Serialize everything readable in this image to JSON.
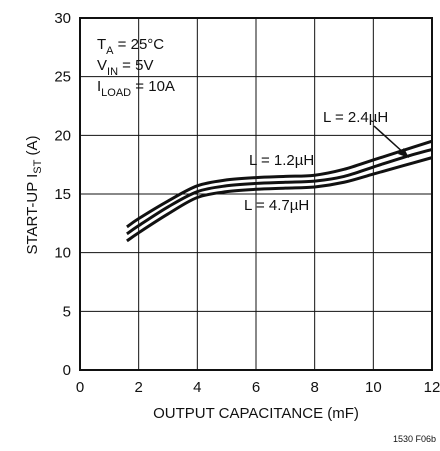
{
  "chart_data": {
    "type": "line",
    "xlabel": "OUTPUT CAPACITANCE (mF)",
    "ylabel": {
      "main": "START-UP I",
      "sub": "ST",
      "unit": " (A)"
    },
    "xlim": [
      0,
      12
    ],
    "ylim": [
      0,
      30
    ],
    "xticks": [
      0,
      2,
      4,
      6,
      8,
      10,
      12
    ],
    "yticks": [
      0,
      5,
      10,
      15,
      20,
      25,
      30
    ],
    "grid": true,
    "conditions": [
      {
        "main": "T",
        "sub": "A",
        "rest": " = 25°C"
      },
      {
        "main": "V",
        "sub": "IN",
        "rest": " = 5V"
      },
      {
        "main": "I",
        "sub": "LOAD",
        "rest": " = 10A"
      }
    ],
    "series": [
      {
        "name": "L = 1.2µH",
        "x": [
          1.6,
          2,
          3,
          4,
          5,
          6,
          7,
          8,
          9,
          10,
          11,
          12
        ],
        "y": [
          12.2,
          12.9,
          14.4,
          15.7,
          16.2,
          16.4,
          16.5,
          16.6,
          17.1,
          17.9,
          18.7,
          19.5
        ]
      },
      {
        "name": "L = 2.4µH",
        "x": [
          1.6,
          2,
          3,
          4,
          5,
          6,
          7,
          8,
          9,
          10,
          11,
          12
        ],
        "y": [
          11.6,
          12.3,
          13.9,
          15.2,
          15.7,
          15.9,
          16.0,
          16.1,
          16.5,
          17.3,
          18.1,
          18.8
        ]
      },
      {
        "name": "L = 4.7µH",
        "x": [
          1.6,
          2,
          3,
          4,
          5,
          6,
          7,
          8,
          9,
          10,
          11,
          12
        ],
        "y": [
          11.0,
          11.7,
          13.3,
          14.7,
          15.2,
          15.4,
          15.5,
          15.6,
          16.0,
          16.7,
          17.4,
          18.1
        ]
      }
    ],
    "series_labels": [
      "L = 2.4µH",
      "L = 1.2µH",
      "L = 4.7µH"
    ],
    "figure_ref": "1530 F06b"
  }
}
